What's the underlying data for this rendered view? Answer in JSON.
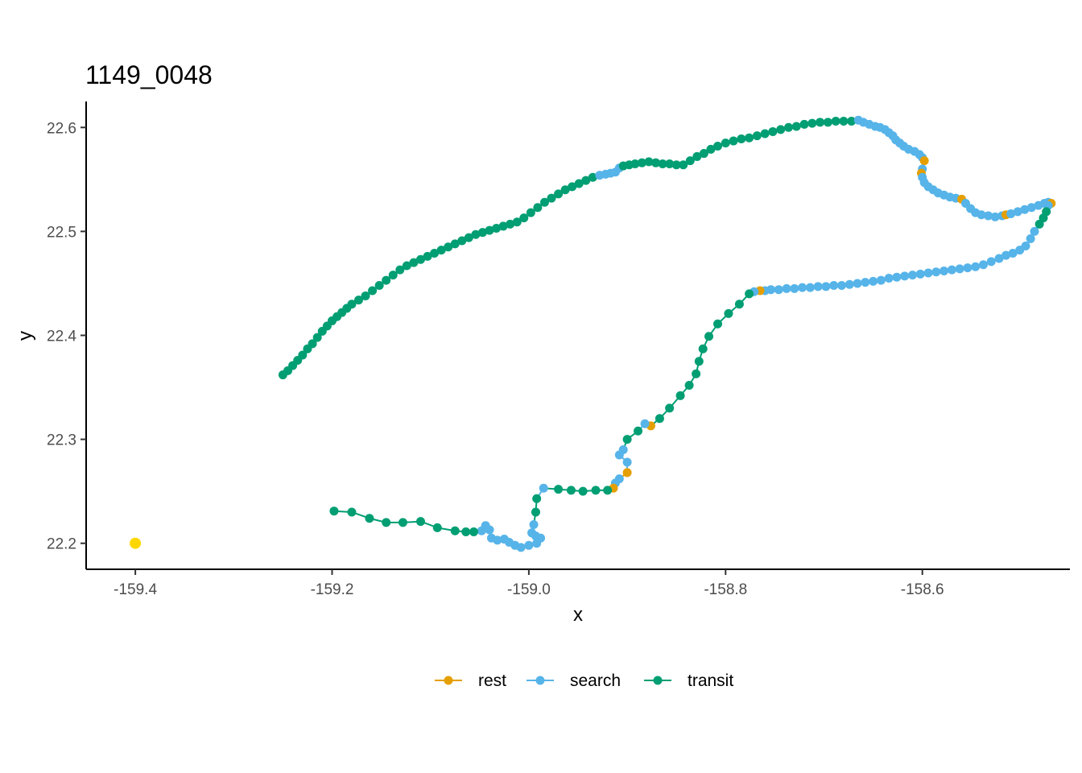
{
  "chart_data": {
    "type": "scatter",
    "title": "1149_0048",
    "xlabel": "x",
    "ylabel": "y",
    "xlim": [
      -159.45,
      -158.45
    ],
    "ylim": [
      22.175,
      22.625
    ],
    "x_ticks": [
      "-159.4",
      "-159.2",
      "-159.0",
      "-158.8",
      "-158.6"
    ],
    "y_ticks": [
      "22.2",
      "22.3",
      "22.4",
      "22.5",
      "22.6"
    ],
    "grid": false,
    "legend_position": "bottom",
    "colors": {
      "rest": "#E69F00",
      "search": "#56B4E9",
      "transit": "#009E73",
      "marker": "#FFD700",
      "axis": "#000000"
    },
    "legend": [
      {
        "key": "rest",
        "label": "rest"
      },
      {
        "key": "search",
        "label": "search"
      },
      {
        "key": "transit",
        "label": "transit"
      }
    ],
    "marker_point": {
      "x": -159.4,
      "y": 22.2
    },
    "path": [
      [
        -159.25,
        22.362,
        "transit"
      ],
      [
        -159.245,
        22.366,
        "transit"
      ],
      [
        -159.24,
        22.371,
        "transit"
      ],
      [
        -159.235,
        22.376,
        "transit"
      ],
      [
        -159.23,
        22.381,
        "transit"
      ],
      [
        -159.225,
        22.387,
        "transit"
      ],
      [
        -159.22,
        22.392,
        "transit"
      ],
      [
        -159.215,
        22.398,
        "transit"
      ],
      [
        -159.21,
        22.404,
        "transit"
      ],
      [
        -159.205,
        22.409,
        "transit"
      ],
      [
        -159.2,
        22.414,
        "transit"
      ],
      [
        -159.195,
        22.418,
        "transit"
      ],
      [
        -159.19,
        22.422,
        "transit"
      ],
      [
        -159.185,
        22.426,
        "transit"
      ],
      [
        -159.18,
        22.43,
        "transit"
      ],
      [
        -159.173,
        22.434,
        "transit"
      ],
      [
        -159.166,
        22.438,
        "transit"
      ],
      [
        -159.159,
        22.443,
        "transit"
      ],
      [
        -159.152,
        22.448,
        "transit"
      ],
      [
        -159.145,
        22.453,
        "transit"
      ],
      [
        -159.138,
        22.458,
        "transit"
      ],
      [
        -159.131,
        22.463,
        "transit"
      ],
      [
        -159.124,
        22.467,
        "transit"
      ],
      [
        -159.117,
        22.47,
        "transit"
      ],
      [
        -159.11,
        22.473,
        "transit"
      ],
      [
        -159.103,
        22.476,
        "transit"
      ],
      [
        -159.096,
        22.479,
        "transit"
      ],
      [
        -159.089,
        22.482,
        "transit"
      ],
      [
        -159.082,
        22.485,
        "transit"
      ],
      [
        -159.075,
        22.488,
        "transit"
      ],
      [
        -159.068,
        22.491,
        "transit"
      ],
      [
        -159.061,
        22.494,
        "transit"
      ],
      [
        -159.054,
        22.497,
        "transit"
      ],
      [
        -159.047,
        22.499,
        "transit"
      ],
      [
        -159.04,
        22.501,
        "transit"
      ],
      [
        -159.033,
        22.503,
        "transit"
      ],
      [
        -159.026,
        22.505,
        "transit"
      ],
      [
        -159.019,
        22.507,
        "transit"
      ],
      [
        -159.012,
        22.509,
        "transit"
      ],
      [
        -159.005,
        22.513,
        "transit"
      ],
      [
        -158.998,
        22.518,
        "transit"
      ],
      [
        -158.991,
        22.523,
        "transit"
      ],
      [
        -158.984,
        22.528,
        "transit"
      ],
      [
        -158.977,
        22.532,
        "transit"
      ],
      [
        -158.97,
        22.536,
        "transit"
      ],
      [
        -158.963,
        22.54,
        "transit"
      ],
      [
        -158.956,
        22.543,
        "transit"
      ],
      [
        -158.949,
        22.546,
        "transit"
      ],
      [
        -158.942,
        22.549,
        "transit"
      ],
      [
        -158.935,
        22.552,
        "transit"
      ],
      [
        -158.928,
        22.554,
        "search"
      ],
      [
        -158.922,
        22.555,
        "search"
      ],
      [
        -158.917,
        22.556,
        "search"
      ],
      [
        -158.912,
        22.557,
        "search"
      ],
      [
        -158.908,
        22.561,
        "search"
      ],
      [
        -158.904,
        22.563,
        "transit"
      ],
      [
        -158.898,
        22.564,
        "transit"
      ],
      [
        -158.892,
        22.565,
        "transit"
      ],
      [
        -158.885,
        22.566,
        "transit"
      ],
      [
        -158.878,
        22.567,
        "transit"
      ],
      [
        -158.871,
        22.566,
        "transit"
      ],
      [
        -158.864,
        22.565,
        "transit"
      ],
      [
        -158.857,
        22.565,
        "transit"
      ],
      [
        -158.85,
        22.564,
        "transit"
      ],
      [
        -158.843,
        22.564,
        "transit"
      ],
      [
        -158.836,
        22.568,
        "transit"
      ],
      [
        -158.829,
        22.572,
        "transit"
      ],
      [
        -158.822,
        22.575,
        "transit"
      ],
      [
        -158.815,
        22.579,
        "transit"
      ],
      [
        -158.808,
        22.582,
        "transit"
      ],
      [
        -158.8,
        22.585,
        "transit"
      ],
      [
        -158.792,
        22.587,
        "transit"
      ],
      [
        -158.784,
        22.589,
        "transit"
      ],
      [
        -158.776,
        22.59,
        "transit"
      ],
      [
        -158.768,
        22.592,
        "transit"
      ],
      [
        -158.76,
        22.594,
        "transit"
      ],
      [
        -158.752,
        22.596,
        "transit"
      ],
      [
        -158.744,
        22.598,
        "transit"
      ],
      [
        -158.736,
        22.6,
        "transit"
      ],
      [
        -158.728,
        22.601,
        "transit"
      ],
      [
        -158.72,
        22.603,
        "transit"
      ],
      [
        -158.712,
        22.604,
        "transit"
      ],
      [
        -158.704,
        22.605,
        "transit"
      ],
      [
        -158.696,
        22.605,
        "transit"
      ],
      [
        -158.688,
        22.606,
        "transit"
      ],
      [
        -158.68,
        22.606,
        "transit"
      ],
      [
        -158.672,
        22.606,
        "transit"
      ],
      [
        -158.665,
        22.607,
        "search"
      ],
      [
        -158.66,
        22.605,
        "search"
      ],
      [
        -158.654,
        22.603,
        "search"
      ],
      [
        -158.648,
        22.601,
        "search"
      ],
      [
        -158.643,
        22.6,
        "search"
      ],
      [
        -158.638,
        22.598,
        "search"
      ],
      [
        -158.634,
        22.595,
        "search"
      ],
      [
        -158.63,
        22.592,
        "search"
      ],
      [
        -158.627,
        22.588,
        "search"
      ],
      [
        -158.623,
        22.585,
        "search"
      ],
      [
        -158.619,
        22.582,
        "search"
      ],
      [
        -158.614,
        22.579,
        "search"
      ],
      [
        -158.608,
        22.577,
        "search"
      ],
      [
        -158.603,
        22.574,
        "search"
      ],
      [
        -158.6,
        22.571,
        "search"
      ],
      [
        -158.598,
        22.568,
        "rest"
      ],
      [
        -158.6,
        22.56,
        "search"
      ],
      [
        -158.601,
        22.556,
        "rest"
      ],
      [
        -158.6,
        22.552,
        "search"
      ],
      [
        -158.598,
        22.547,
        "search"
      ],
      [
        -158.594,
        22.543,
        "search"
      ],
      [
        -158.589,
        22.54,
        "search"
      ],
      [
        -158.584,
        22.537,
        "search"
      ],
      [
        -158.578,
        22.535,
        "search"
      ],
      [
        -158.572,
        22.533,
        "search"
      ],
      [
        -158.566,
        22.532,
        "search"
      ],
      [
        -158.56,
        22.531,
        "rest"
      ],
      [
        -158.556,
        22.527,
        "search"
      ],
      [
        -158.551,
        22.522,
        "search"
      ],
      [
        -158.546,
        22.518,
        "search"
      ],
      [
        -158.54,
        22.516,
        "search"
      ],
      [
        -158.533,
        22.515,
        "search"
      ],
      [
        -158.526,
        22.514,
        "search"
      ],
      [
        -158.519,
        22.515,
        "search"
      ],
      [
        -158.515,
        22.516,
        "rest"
      ],
      [
        -158.51,
        22.517,
        "search"
      ],
      [
        -158.503,
        22.519,
        "search"
      ],
      [
        -158.496,
        22.521,
        "search"
      ],
      [
        -158.489,
        22.523,
        "search"
      ],
      [
        -158.482,
        22.525,
        "search"
      ],
      [
        -158.476,
        22.527,
        "search"
      ],
      [
        -158.472,
        22.528,
        "search"
      ],
      [
        -158.469,
        22.527,
        "rest"
      ],
      [
        -158.472,
        22.525,
        "search"
      ],
      [
        -158.474,
        22.519,
        "transit"
      ],
      [
        -158.477,
        22.513,
        "transit"
      ],
      [
        -158.481,
        22.507,
        "transit"
      ],
      [
        -158.486,
        22.5,
        "search"
      ],
      [
        -158.49,
        22.493,
        "search"
      ],
      [
        -158.495,
        22.486,
        "search"
      ],
      [
        -158.501,
        22.482,
        "search"
      ],
      [
        -158.508,
        22.479,
        "search"
      ],
      [
        -158.515,
        22.477,
        "search"
      ],
      [
        -158.522,
        22.474,
        "search"
      ],
      [
        -158.53,
        22.471,
        "search"
      ],
      [
        -158.538,
        22.468,
        "search"
      ],
      [
        -158.546,
        22.466,
        "search"
      ],
      [
        -158.554,
        22.465,
        "search"
      ],
      [
        -158.562,
        22.464,
        "search"
      ],
      [
        -158.57,
        22.463,
        "search"
      ],
      [
        -158.578,
        22.462,
        "search"
      ],
      [
        -158.586,
        22.461,
        "search"
      ],
      [
        -158.594,
        22.46,
        "search"
      ],
      [
        -158.602,
        22.459,
        "search"
      ],
      [
        -158.61,
        22.458,
        "search"
      ],
      [
        -158.618,
        22.457,
        "search"
      ],
      [
        -158.626,
        22.456,
        "search"
      ],
      [
        -158.634,
        22.455,
        "search"
      ],
      [
        -158.642,
        22.453,
        "search"
      ],
      [
        -158.65,
        22.452,
        "search"
      ],
      [
        -158.658,
        22.451,
        "search"
      ],
      [
        -158.666,
        22.45,
        "search"
      ],
      [
        -158.674,
        22.449,
        "search"
      ],
      [
        -158.682,
        22.448,
        "search"
      ],
      [
        -158.69,
        22.448,
        "search"
      ],
      [
        -158.698,
        22.447,
        "search"
      ],
      [
        -158.706,
        22.447,
        "search"
      ],
      [
        -158.714,
        22.446,
        "search"
      ],
      [
        -158.722,
        22.446,
        "search"
      ],
      [
        -158.73,
        22.445,
        "search"
      ],
      [
        -158.738,
        22.445,
        "search"
      ],
      [
        -158.746,
        22.444,
        "search"
      ],
      [
        -158.754,
        22.444,
        "search"
      ],
      [
        -158.76,
        22.443,
        "search"
      ],
      [
        -158.765,
        22.443,
        "rest"
      ],
      [
        -158.771,
        22.442,
        "search"
      ],
      [
        -158.776,
        22.44,
        "transit"
      ],
      [
        -158.786,
        22.43,
        "transit"
      ],
      [
        -158.797,
        22.421,
        "transit"
      ],
      [
        -158.808,
        22.411,
        "transit"
      ],
      [
        -158.817,
        22.399,
        "transit"
      ],
      [
        -158.823,
        22.387,
        "transit"
      ],
      [
        -158.827,
        22.375,
        "transit"
      ],
      [
        -158.83,
        22.363,
        "transit"
      ],
      [
        -158.837,
        22.352,
        "transit"
      ],
      [
        -158.846,
        22.342,
        "transit"
      ],
      [
        -158.857,
        22.33,
        "transit"
      ],
      [
        -158.867,
        22.32,
        "transit"
      ],
      [
        -158.876,
        22.313,
        "rest"
      ],
      [
        -158.882,
        22.315,
        "search"
      ],
      [
        -158.889,
        22.308,
        "transit"
      ],
      [
        -158.9,
        22.3,
        "transit"
      ],
      [
        -158.904,
        22.29,
        "search"
      ],
      [
        -158.908,
        22.285,
        "search"
      ],
      [
        -158.9,
        22.278,
        "search"
      ],
      [
        -158.9,
        22.268,
        "rest"
      ],
      [
        -158.908,
        22.262,
        "search"
      ],
      [
        -158.912,
        22.258,
        "search"
      ],
      [
        -158.914,
        22.253,
        "rest"
      ],
      [
        -158.92,
        22.251,
        "transit"
      ],
      [
        -158.932,
        22.251,
        "transit"
      ],
      [
        -158.945,
        22.25,
        "transit"
      ],
      [
        -158.957,
        22.251,
        "transit"
      ],
      [
        -158.97,
        22.252,
        "transit"
      ],
      [
        -158.985,
        22.253,
        "search"
      ],
      [
        -158.992,
        22.243,
        "transit"
      ],
      [
        -158.993,
        22.23,
        "transit"
      ],
      [
        -158.995,
        22.218,
        "search"
      ],
      [
        -158.997,
        22.21,
        "search"
      ],
      [
        -158.993,
        22.207,
        "search"
      ],
      [
        -158.988,
        22.205,
        "search"
      ],
      [
        -158.992,
        22.2,
        "search"
      ],
      [
        -159.0,
        22.198,
        "search"
      ],
      [
        -159.008,
        22.196,
        "search"
      ],
      [
        -159.014,
        22.198,
        "search"
      ],
      [
        -159.02,
        22.201,
        "search"
      ],
      [
        -159.025,
        22.204,
        "search"
      ],
      [
        -159.032,
        22.203,
        "search"
      ],
      [
        -159.038,
        22.205,
        "search"
      ],
      [
        -159.04,
        22.213,
        "search"
      ],
      [
        -159.044,
        22.217,
        "search"
      ],
      [
        -159.048,
        22.212,
        "search"
      ],
      [
        -159.056,
        22.211,
        "transit"
      ],
      [
        -159.064,
        22.211,
        "transit"
      ],
      [
        -159.075,
        22.212,
        "transit"
      ],
      [
        -159.093,
        22.215,
        "transit"
      ],
      [
        -159.11,
        22.221,
        "transit"
      ],
      [
        -159.128,
        22.22,
        "transit"
      ],
      [
        -159.145,
        22.22,
        "transit"
      ],
      [
        -159.162,
        22.224,
        "transit"
      ],
      [
        -159.18,
        22.23,
        "transit"
      ],
      [
        -159.198,
        22.231,
        "transit"
      ]
    ]
  }
}
